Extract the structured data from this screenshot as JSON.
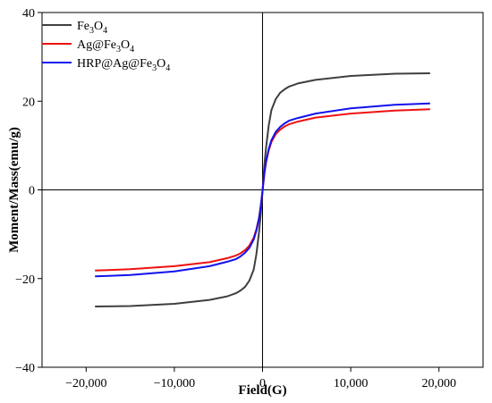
{
  "chart_data": {
    "type": "line",
    "xlabel": "Field(G)",
    "ylabel": "Moment/Mass(emu/g)",
    "xlim": [
      -25000,
      25000
    ],
    "ylim": [
      -40,
      40
    ],
    "x_ticks": [
      -20000,
      -10000,
      0,
      10000,
      20000
    ],
    "x_tick_labels": [
      "−20,000",
      "−10,000",
      "0",
      "10,000",
      "20,000"
    ],
    "y_ticks": [
      -40,
      -20,
      0,
      20,
      40
    ],
    "y_tick_labels": [
      "−40",
      "−20",
      "0",
      "20",
      "40"
    ],
    "grid": false,
    "legend_position": "top-left",
    "series": [
      {
        "name": "Fe3O4",
        "name_parts": [
          "Fe",
          "3",
          "O",
          "4"
        ],
        "color": "#3f3f3f",
        "points": [
          [
            -19000,
            -26.3
          ],
          [
            -15000,
            -26.2
          ],
          [
            -10000,
            -25.7
          ],
          [
            -6000,
            -24.8
          ],
          [
            -4000,
            -24.0
          ],
          [
            -3000,
            -23.3
          ],
          [
            -2500,
            -22.7
          ],
          [
            -2000,
            -21.9
          ],
          [
            -1500,
            -20.5
          ],
          [
            -1000,
            -18.0
          ],
          [
            -700,
            -14.5
          ],
          [
            -400,
            -9.5
          ],
          [
            -200,
            -5.5
          ],
          [
            0,
            -0.3
          ],
          [
            200,
            5.5
          ],
          [
            400,
            9.5
          ],
          [
            700,
            14.5
          ],
          [
            1000,
            18.0
          ],
          [
            1500,
            20.5
          ],
          [
            2000,
            21.9
          ],
          [
            2500,
            22.7
          ],
          [
            3000,
            23.3
          ],
          [
            4000,
            24.0
          ],
          [
            6000,
            24.8
          ],
          [
            10000,
            25.7
          ],
          [
            15000,
            26.2
          ],
          [
            19000,
            26.3
          ]
        ]
      },
      {
        "name": "Ag@Fe3O4",
        "name_parts": [
          "Ag@Fe",
          "3",
          "O",
          "4"
        ],
        "color": "#ee1111",
        "points": [
          [
            -19000,
            -18.2
          ],
          [
            -15000,
            -17.9
          ],
          [
            -10000,
            -17.2
          ],
          [
            -6000,
            -16.3
          ],
          [
            -4000,
            -15.4
          ],
          [
            -3000,
            -14.8
          ],
          [
            -2500,
            -14.3
          ],
          [
            -2000,
            -13.6
          ],
          [
            -1500,
            -12.6
          ],
          [
            -1000,
            -10.8
          ],
          [
            -700,
            -8.9
          ],
          [
            -400,
            -6.2
          ],
          [
            -200,
            -3.6
          ],
          [
            0,
            -0.2
          ],
          [
            200,
            3.6
          ],
          [
            400,
            6.2
          ],
          [
            700,
            8.9
          ],
          [
            1000,
            10.8
          ],
          [
            1500,
            12.6
          ],
          [
            2000,
            13.6
          ],
          [
            2500,
            14.3
          ],
          [
            3000,
            14.8
          ],
          [
            4000,
            15.4
          ],
          [
            6000,
            16.3
          ],
          [
            10000,
            17.2
          ],
          [
            15000,
            17.9
          ],
          [
            19000,
            18.2
          ]
        ]
      },
      {
        "name": "HRP@Ag@Fe3O4",
        "name_parts": [
          "HRP@Ag@Fe",
          "3",
          "O",
          "4"
        ],
        "color": "#1111ee",
        "points": [
          [
            -19000,
            -19.5
          ],
          [
            -15000,
            -19.2
          ],
          [
            -10000,
            -18.4
          ],
          [
            -6000,
            -17.2
          ],
          [
            -4000,
            -16.2
          ],
          [
            -3000,
            -15.6
          ],
          [
            -2500,
            -15.0
          ],
          [
            -2000,
            -14.2
          ],
          [
            -1500,
            -13.1
          ],
          [
            -1000,
            -11.2
          ],
          [
            -700,
            -9.2
          ],
          [
            -400,
            -6.4
          ],
          [
            -200,
            -3.7
          ],
          [
            0,
            -0.2
          ],
          [
            200,
            3.7
          ],
          [
            400,
            6.4
          ],
          [
            700,
            9.2
          ],
          [
            1000,
            11.2
          ],
          [
            1500,
            13.1
          ],
          [
            2000,
            14.2
          ],
          [
            2500,
            15.0
          ],
          [
            3000,
            15.6
          ],
          [
            4000,
            16.2
          ],
          [
            6000,
            17.2
          ],
          [
            10000,
            18.4
          ],
          [
            15000,
            19.2
          ],
          [
            19000,
            19.5
          ]
        ]
      }
    ]
  }
}
